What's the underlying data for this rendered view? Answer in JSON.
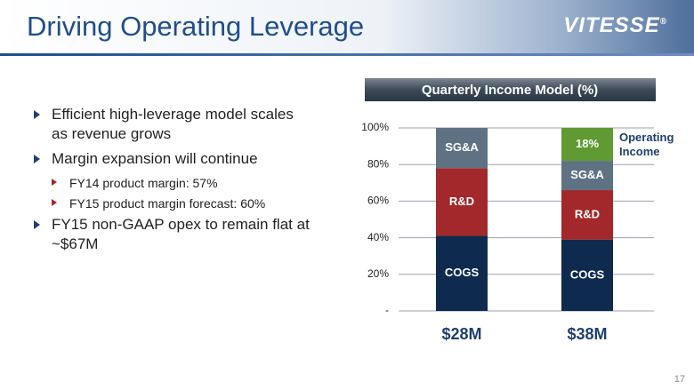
{
  "header": {
    "title": "Driving Operating Leverage",
    "logo": "VITESSE",
    "logo_mark": "®"
  },
  "bullets": [
    {
      "text": "Efficient high-leverage model scales as revenue grows"
    },
    {
      "text": "Margin expansion will continue",
      "sub": [
        "FY14 product margin: 57%",
        "FY15 product margin forecast: 60%"
      ]
    },
    {
      "text": "FY15 non-GAAP opex to remain flat at ~$67M"
    }
  ],
  "page_number": 17,
  "chart_data": {
    "type": "bar",
    "stacked": true,
    "title": "Quarterly Income Model (%)",
    "categories": [
      "$28M",
      "$38M"
    ],
    "series": [
      {
        "name": "COGS",
        "color": "#0e2a4e",
        "values": [
          41,
          39
        ]
      },
      {
        "name": "R&D",
        "color": "#a3282b",
        "values": [
          37,
          27
        ]
      },
      {
        "name": "SG&A",
        "color": "#5e7283",
        "values": [
          22,
          16
        ]
      },
      {
        "name": "Operating Income",
        "color": "#5f9a33",
        "values": [
          0,
          18
        ],
        "value_labels": [
          null,
          "18%"
        ]
      }
    ],
    "ylim": [
      0,
      100
    ],
    "yticks": [
      {
        "value": 0,
        "label": "-"
      },
      {
        "value": 20,
        "label": "20%"
      },
      {
        "value": 40,
        "label": "40%"
      },
      {
        "value": 60,
        "label": "60%"
      },
      {
        "value": 80,
        "label": "80%"
      },
      {
        "value": 100,
        "label": "100%"
      }
    ],
    "grid": true
  }
}
